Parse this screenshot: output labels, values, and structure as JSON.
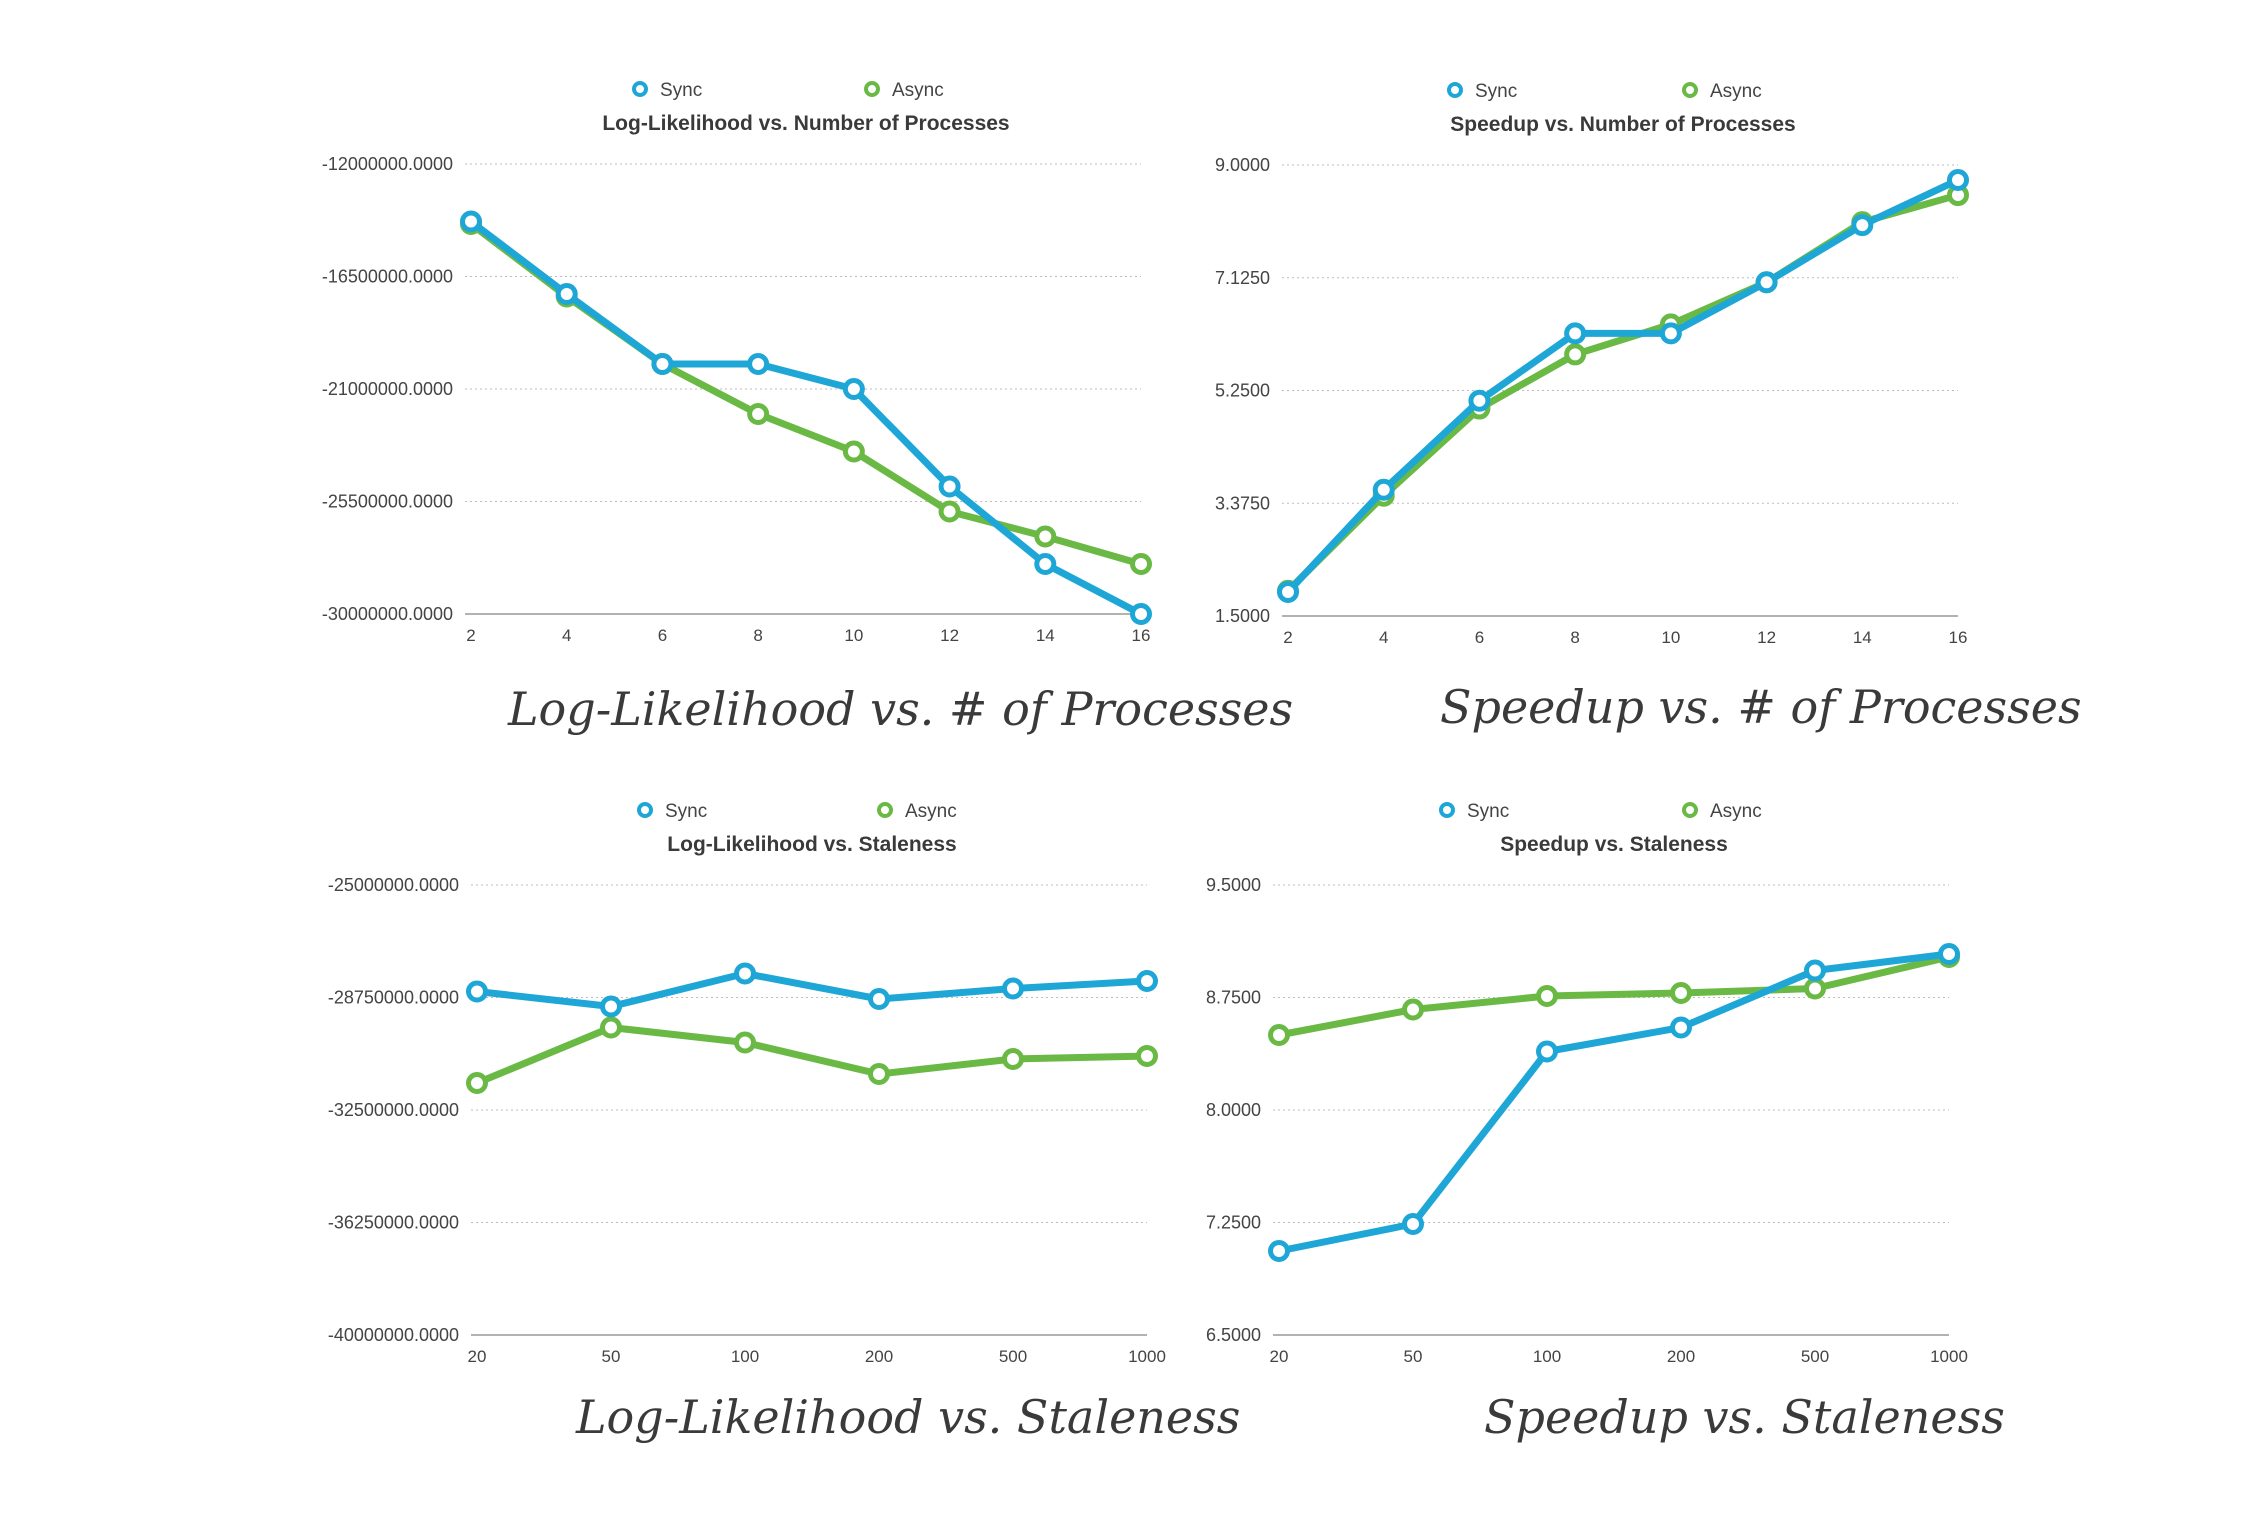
{
  "colors": {
    "sync": "#1ea7d6",
    "async": "#6ab945",
    "grid": "#bdbdbd",
    "text": "#444444",
    "axis": "#999999"
  },
  "chart_data": [
    {
      "type": "line",
      "title": "Log-Likelihood vs. Number of Processes",
      "caption": "Log-Likelihood vs. # of Processes",
      "categories": [
        "2",
        "4",
        "6",
        "8",
        "10",
        "12",
        "14",
        "16"
      ],
      "yticks": [
        "-12000000.0000",
        "-16500000.0000",
        "-21000000.0000",
        "-25500000.0000",
        "-30000000.0000"
      ],
      "ylim": [
        -30000000,
        -12000000
      ],
      "grid": true,
      "legend": "top",
      "series": [
        {
          "name": "Sync",
          "values": [
            -14300000,
            -17200000,
            -20000000,
            -20000000,
            -21000000,
            -24900000,
            -28000000,
            -30000000
          ]
        },
        {
          "name": "Async",
          "values": [
            -14400000,
            -17300000,
            -20000000,
            -22000000,
            -23500000,
            -25900000,
            -26900000,
            -28000000
          ]
        }
      ]
    },
    {
      "type": "line",
      "title": "Speedup vs. Number of Processes",
      "caption": "Speedup vs. # of Processes",
      "categories": [
        "2",
        "4",
        "6",
        "8",
        "10",
        "12",
        "14",
        "16"
      ],
      "yticks": [
        "9.0000",
        "7.1250",
        "5.2500",
        "3.3750",
        "1.5000"
      ],
      "ylim": [
        1.5,
        9.0
      ],
      "grid": true,
      "legend": "top",
      "series": [
        {
          "name": "Sync",
          "values": [
            1.9,
            3.6,
            5.08,
            6.2,
            6.2,
            7.05,
            8.0,
            8.75
          ]
        },
        {
          "name": "Async",
          "values": [
            1.92,
            3.5,
            4.95,
            5.85,
            6.35,
            7.05,
            8.05,
            8.5
          ]
        }
      ]
    },
    {
      "type": "line",
      "title": "Log-Likelihood vs. Staleness",
      "caption": "Log-Likelihood vs. Staleness",
      "categories": [
        "20",
        "50",
        "100",
        "200",
        "500",
        "1000"
      ],
      "yticks": [
        "-25000000.0000",
        "-28750000.0000",
        "-32500000.0000",
        "-36250000.0000",
        "-40000000.0000"
      ],
      "ylim": [
        -40000000,
        -25000000
      ],
      "grid": true,
      "legend": "top",
      "series": [
        {
          "name": "Sync",
          "values": [
            -28550000,
            -29050000,
            -27950000,
            -28800000,
            -28450000,
            -28200000
          ]
        },
        {
          "name": "Async",
          "values": [
            -31600000,
            -29750000,
            -30250000,
            -31300000,
            -30800000,
            -30700000
          ]
        }
      ]
    },
    {
      "type": "line",
      "title": "Speedup vs. Staleness",
      "caption": "Speedup vs. Staleness",
      "categories": [
        "20",
        "50",
        "100",
        "200",
        "500",
        "1000"
      ],
      "yticks": [
        "9.5000",
        "8.7500",
        "8.0000",
        "7.2500",
        "6.5000"
      ],
      "ylim": [
        6.5,
        9.5
      ],
      "grid": true,
      "legend": "top",
      "series": [
        {
          "name": "Sync",
          "values": [
            7.06,
            7.24,
            8.39,
            8.55,
            8.93,
            9.04
          ]
        },
        {
          "name": "Async",
          "values": [
            8.5,
            8.67,
            8.76,
            8.78,
            8.81,
            9.02
          ]
        }
      ]
    }
  ]
}
